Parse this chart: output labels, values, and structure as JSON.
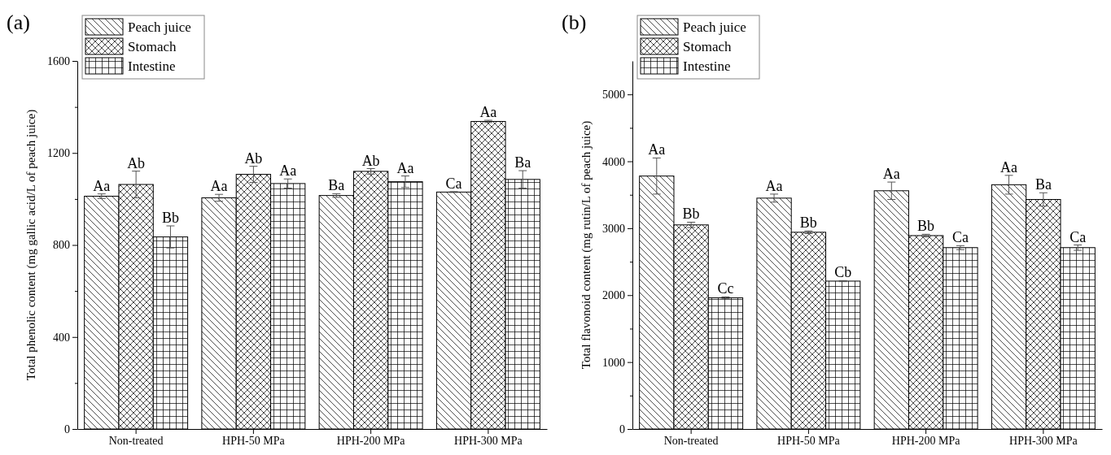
{
  "chart_data": [
    {
      "type": "bar",
      "title": "(a)",
      "ylabel": "Total phenolic content (mg gallic acid/L of peach juice)",
      "categories": [
        "Non-treated",
        "HPH-50 MPa",
        "HPH-200 MPa",
        "HPH-300 MPa"
      ],
      "ylim": [
        0,
        1600
      ],
      "yticks": [
        0,
        {
          "value": 200,
          "label": null
        },
        400,
        {
          "value": 600,
          "label": null
        },
        800,
        {
          "value": 1000,
          "label": null
        },
        1200,
        {
          "value": 1400,
          "label": null
        },
        1600
      ],
      "grid": false,
      "legend": "top left",
      "series": [
        {
          "name": "Peach juice",
          "color": "#000000",
          "values": [
            1012,
            1005,
            1015,
            1030
          ],
          "errors": [
            10,
            15,
            8,
            2
          ],
          "value_labels": [
            "Aa",
            "Aa",
            "Ba",
            "Ca"
          ]
        },
        {
          "name": "Stomach",
          "color": "#000000",
          "values": [
            1063,
            1107,
            1120,
            1337
          ],
          "errors": [
            58,
            35,
            12,
            5
          ],
          "value_labels": [
            "Ab",
            "Ab",
            "Ab",
            "Aa"
          ]
        },
        {
          "name": "Intestine",
          "color": "#000000",
          "values": [
            835,
            1067,
            1075,
            1085
          ],
          "errors": [
            48,
            20,
            25,
            38
          ],
          "value_labels": [
            "Bb",
            "Aa",
            "Aa",
            "Ba"
          ]
        }
      ]
    },
    {
      "type": "bar",
      "title": "(b)",
      "ylabel": "Total flavonoid content (mg rutin/L of peach juice)",
      "categories": [
        "Non-treated",
        "HPH-50 MPa",
        "HPH-200 MPa",
        "HPH-300 MPa"
      ],
      "ylim": [
        0,
        5500
      ],
      "yticks": [
        0,
        {
          "value": 500,
          "label": null
        },
        1000,
        {
          "value": 1500,
          "label": null
        },
        2000,
        {
          "value": 2500,
          "label": null
        },
        3000,
        {
          "value": 3500,
          "label": null
        },
        4000,
        {
          "value": 4500,
          "label": null
        },
        5000
      ],
      "grid": false,
      "legend": "top left",
      "series": [
        {
          "name": "Peach juice",
          "color": "#000000",
          "values": [
            3780,
            3450,
            3560,
            3650
          ],
          "errors": [
            270,
            60,
            130,
            140
          ],
          "value_labels": [
            "Aa",
            "Aa",
            "Aa",
            "Aa"
          ]
        },
        {
          "name": "Stomach",
          "color": "#000000",
          "values": [
            3050,
            2940,
            2890,
            3430
          ],
          "errors": [
            40,
            20,
            20,
            100
          ],
          "value_labels": [
            "Bb",
            "Bb",
            "Bb",
            "Ba"
          ]
        },
        {
          "name": "Intestine",
          "color": "#000000",
          "values": [
            1960,
            2210,
            2710,
            2710
          ],
          "errors": [
            15,
            8,
            30,
            40
          ],
          "value_labels": [
            "Cc",
            "Cb",
            "Ca",
            "Ca"
          ]
        }
      ]
    }
  ]
}
